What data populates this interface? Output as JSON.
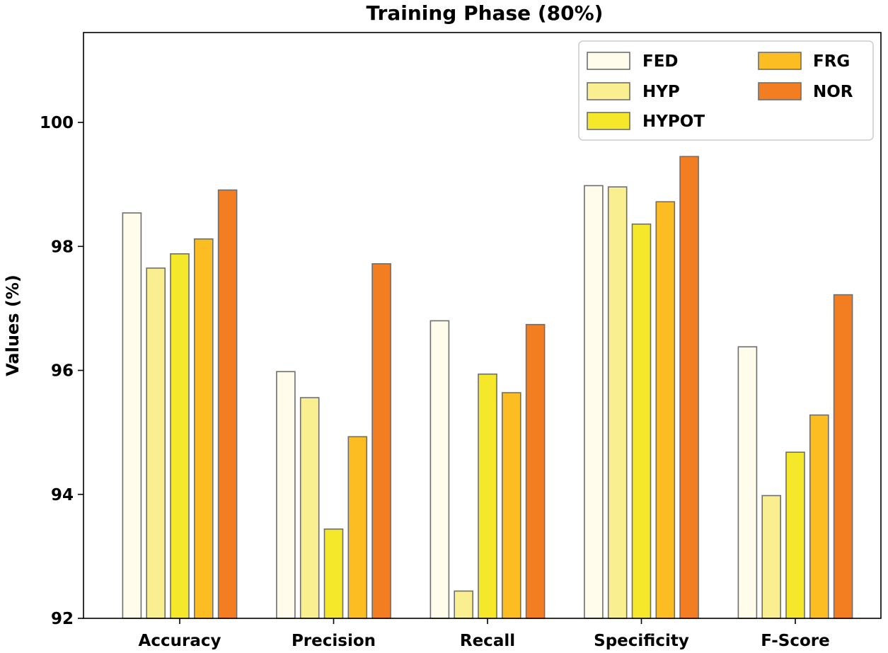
{
  "chart_data": {
    "type": "bar",
    "title": "Training Phase (80%)",
    "xlabel": "",
    "ylabel": "Values (%)",
    "ylim": [
      92,
      101.45
    ],
    "yticks": [
      92,
      94,
      96,
      98,
      100
    ],
    "categories": [
      "Accuracy",
      "Precision",
      "Recall",
      "Specificity",
      "F-Score"
    ],
    "series": [
      {
        "name": "FED",
        "color": "#fffcec",
        "values": [
          98.54,
          95.98,
          96.8,
          98.98,
          96.38
        ]
      },
      {
        "name": "HYP",
        "color": "#faef90",
        "values": [
          97.65,
          95.56,
          92.44,
          98.96,
          93.98
        ]
      },
      {
        "name": "HYPOT",
        "color": "#f5e72a",
        "values": [
          97.88,
          93.44,
          95.94,
          98.36,
          94.68
        ]
      },
      {
        "name": "FRG",
        "color": "#fbbd22",
        "values": [
          98.12,
          94.93,
          95.64,
          98.72,
          95.28
        ]
      },
      {
        "name": "NOR",
        "color": "#f37e22",
        "values": [
          98.91,
          97.72,
          96.74,
          99.45,
          97.22
        ]
      }
    ],
    "legend_position": "top-right",
    "grid": false
  }
}
